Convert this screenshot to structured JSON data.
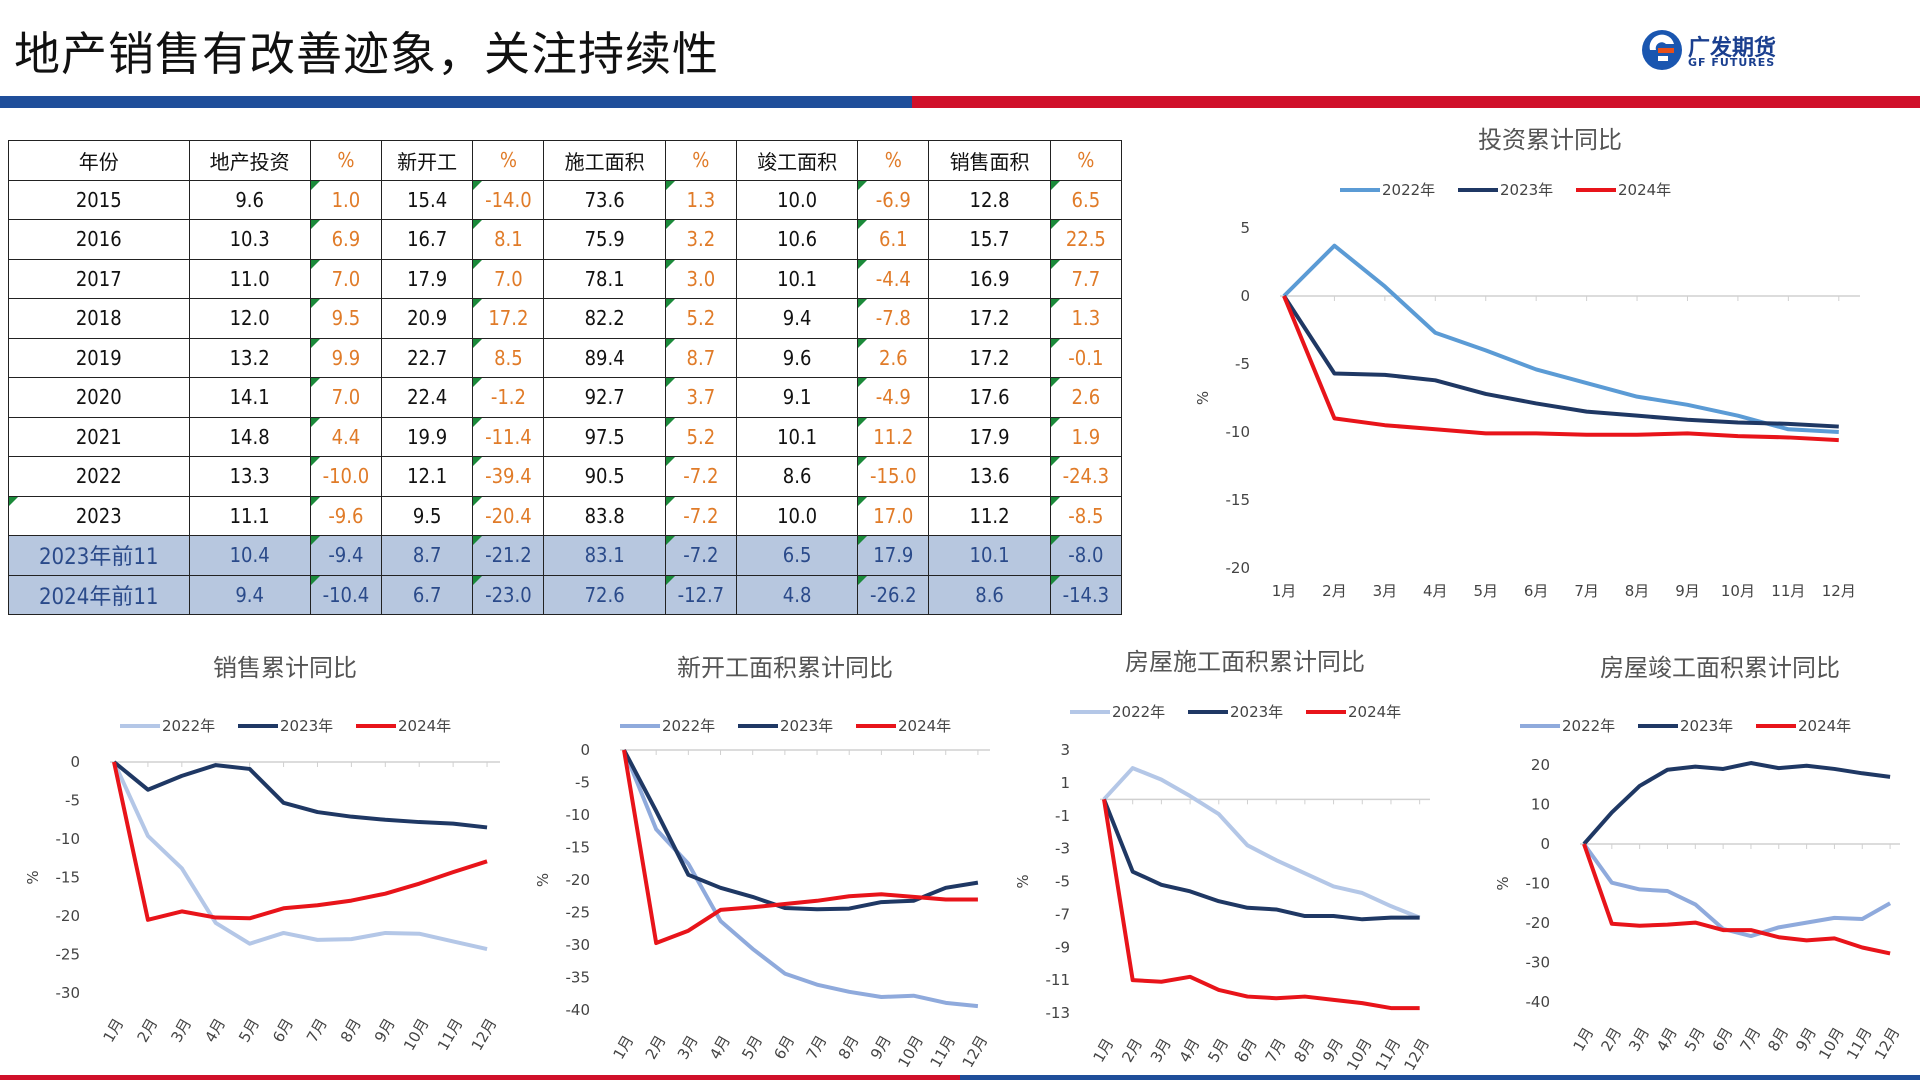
{
  "header": {
    "title": "地产销售有改善迹象，关注持续性",
    "logo_cn": "广发期货",
    "logo_en": "GF FUTURES"
  },
  "colors": {
    "brand_blue": "#1f4e9a",
    "brand_red": "#d0102a",
    "pct_orange": "#e07b28",
    "highlight_row": "#b7c7df"
  },
  "table": {
    "headers": [
      "年份",
      "地产投资",
      "%",
      "新开工",
      "%",
      "施工面积",
      "%",
      "竣工面积",
      "%",
      "销售面积",
      "%"
    ],
    "rows": [
      [
        "2015",
        "9.6",
        "1.0",
        "15.4",
        "-14.0",
        "73.6",
        "1.3",
        "10.0",
        "-6.9",
        "12.8",
        "6.5"
      ],
      [
        "2016",
        "10.3",
        "6.9",
        "16.7",
        "8.1",
        "75.9",
        "3.2",
        "10.6",
        "6.1",
        "15.7",
        "22.5"
      ],
      [
        "2017",
        "11.0",
        "7.0",
        "17.9",
        "7.0",
        "78.1",
        "3.0",
        "10.1",
        "-4.4",
        "16.9",
        "7.7"
      ],
      [
        "2018",
        "12.0",
        "9.5",
        "20.9",
        "17.2",
        "82.2",
        "5.2",
        "9.4",
        "-7.8",
        "17.2",
        "1.3"
      ],
      [
        "2019",
        "13.2",
        "9.9",
        "22.7",
        "8.5",
        "89.4",
        "8.7",
        "9.6",
        "2.6",
        "17.2",
        "-0.1"
      ],
      [
        "2020",
        "14.1",
        "7.0",
        "22.4",
        "-1.2",
        "92.7",
        "3.7",
        "9.1",
        "-4.9",
        "17.6",
        "2.6"
      ],
      [
        "2021",
        "14.8",
        "4.4",
        "19.9",
        "-11.4",
        "97.5",
        "5.2",
        "10.1",
        "11.2",
        "17.9",
        "1.9"
      ],
      [
        "2022",
        "13.3",
        "-10.0",
        "12.1",
        "-39.4",
        "90.5",
        "-7.2",
        "8.6",
        "-15.0",
        "13.6",
        "-24.3"
      ],
      [
        "2023",
        "11.1",
        "-9.6",
        "9.5",
        "-20.4",
        "83.8",
        "-7.2",
        "10.0",
        "17.0",
        "11.2",
        "-8.5"
      ],
      [
        "2023年前11",
        "10.4",
        "-9.4",
        "8.7",
        "-21.2",
        "83.1",
        "-7.2",
        "6.5",
        "17.9",
        "10.1",
        "-8.0"
      ],
      [
        "2024年前11",
        "9.4",
        "-10.4",
        "6.7",
        "-23.0",
        "72.6",
        "-12.7",
        "4.8",
        "-26.2",
        "8.6",
        "-14.3"
      ]
    ]
  },
  "chart_data": [
    {
      "id": "invest",
      "type": "line",
      "title": "投资累计同比",
      "ylabel": "%",
      "x": [
        "1月",
        "2月",
        "3月",
        "4月",
        "5月",
        "6月",
        "7月",
        "8月",
        "9月",
        "10月",
        "11月",
        "12月"
      ],
      "ylim": [
        -20,
        5
      ],
      "yticks": [
        5,
        0,
        -5,
        -10,
        -15,
        -20
      ],
      "series": [
        {
          "name": "2022年",
          "color": "#5b9bd5",
          "values": [
            0,
            3.7,
            0.7,
            -2.7,
            -4.0,
            -5.4,
            -6.4,
            -7.4,
            -8.0,
            -8.8,
            -9.8,
            -10.0
          ]
        },
        {
          "name": "2023年",
          "color": "#1f3864",
          "values": [
            0,
            -5.7,
            -5.8,
            -6.2,
            -7.2,
            -7.9,
            -8.5,
            -8.8,
            -9.1,
            -9.3,
            -9.4,
            -9.6
          ]
        },
        {
          "name": "2024年",
          "color": "#e8141a",
          "values": [
            0,
            -9.0,
            -9.5,
            -9.8,
            -10.1,
            -10.1,
            -10.2,
            -10.2,
            -10.1,
            -10.3,
            -10.4,
            -10.6
          ]
        }
      ]
    },
    {
      "id": "sales",
      "type": "line",
      "title": "销售累计同比",
      "ylabel": "%",
      "x": [
        "1月",
        "2月",
        "3月",
        "4月",
        "5月",
        "6月",
        "7月",
        "8月",
        "9月",
        "10月",
        "11月",
        "12月"
      ],
      "ylim": [
        -30,
        0
      ],
      "yticks": [
        0,
        -5,
        -10,
        -15,
        -20,
        -25,
        -30
      ],
      "series": [
        {
          "name": "2022年",
          "color": "#b4c7e7",
          "values": [
            0,
            -9.6,
            -13.8,
            -20.9,
            -23.6,
            -22.2,
            -23.1,
            -23.0,
            -22.2,
            -22.3,
            -23.3,
            -24.3
          ]
        },
        {
          "name": "2023年",
          "color": "#1f3864",
          "values": [
            0,
            -3.6,
            -1.8,
            -0.4,
            -0.9,
            -5.3,
            -6.5,
            -7.1,
            -7.5,
            -7.8,
            -8.0,
            -8.5
          ]
        },
        {
          "name": "2024年",
          "color": "#e8141a",
          "values": [
            0,
            -20.5,
            -19.4,
            -20.2,
            -20.3,
            -19.0,
            -18.6,
            -18.0,
            -17.1,
            -15.8,
            -14.3,
            -12.9
          ]
        }
      ]
    },
    {
      "id": "newstart",
      "type": "line",
      "title": "新开工面积累计同比",
      "ylabel": "%",
      "x": [
        "1月",
        "2月",
        "3月",
        "4月",
        "5月",
        "6月",
        "7月",
        "8月",
        "9月",
        "10月",
        "11月",
        "12月"
      ],
      "ylim": [
        -40,
        0
      ],
      "yticks": [
        0,
        -5,
        -10,
        -15,
        -20,
        -25,
        -30,
        -35,
        -40
      ],
      "series": [
        {
          "name": "2022年",
          "color": "#8faadc",
          "values": [
            0,
            -12.2,
            -17.5,
            -26.3,
            -30.6,
            -34.4,
            -36.1,
            -37.2,
            -38.0,
            -37.8,
            -38.9,
            -39.4
          ]
        },
        {
          "name": "2023年",
          "color": "#1f3864",
          "values": [
            0,
            -9.4,
            -19.2,
            -21.2,
            -22.6,
            -24.3,
            -24.5,
            -24.4,
            -23.4,
            -23.2,
            -21.2,
            -20.4
          ]
        },
        {
          "name": "2024年",
          "color": "#e8141a",
          "values": [
            0,
            -29.7,
            -27.8,
            -24.6,
            -24.2,
            -23.7,
            -23.2,
            -22.5,
            -22.2,
            -22.6,
            -23.0,
            -23.0
          ]
        }
      ]
    },
    {
      "id": "construction",
      "type": "line",
      "title": "房屋施工面积累计同比",
      "ylabel": "%",
      "x": [
        "1月",
        "2月",
        "3月",
        "4月",
        "5月",
        "6月",
        "7月",
        "8月",
        "9月",
        "10月",
        "11月",
        "12月"
      ],
      "ylim": [
        -13,
        3
      ],
      "yticks": [
        3,
        1,
        -1,
        -3,
        -5,
        -7,
        -9,
        -11,
        -13
      ],
      "series": [
        {
          "name": "2022年",
          "color": "#b4c7e7",
          "values": [
            0,
            1.9,
            1.2,
            0.2,
            -0.9,
            -2.8,
            -3.7,
            -4.5,
            -5.3,
            -5.7,
            -6.5,
            -7.2
          ]
        },
        {
          "name": "2023年",
          "color": "#1f3864",
          "values": [
            0,
            -4.4,
            -5.2,
            -5.6,
            -6.2,
            -6.6,
            -6.7,
            -7.1,
            -7.1,
            -7.3,
            -7.2,
            -7.2
          ]
        },
        {
          "name": "2024年",
          "color": "#e8141a",
          "values": [
            0,
            -11.0,
            -11.1,
            -10.8,
            -11.6,
            -12.0,
            -12.1,
            -12.0,
            -12.2,
            -12.4,
            -12.7,
            -12.7
          ]
        }
      ]
    },
    {
      "id": "completion",
      "type": "line",
      "title": "房屋竣工面积累计同比",
      "ylabel": "%",
      "x": [
        "1月",
        "2月",
        "3月",
        "4月",
        "5月",
        "6月",
        "7月",
        "8月",
        "9月",
        "10月",
        "11月",
        "12月"
      ],
      "ylim": [
        -40,
        20
      ],
      "yticks": [
        20,
        10,
        0,
        -10,
        -20,
        -30,
        -40
      ],
      "series": [
        {
          "name": "2022年",
          "color": "#8faadc",
          "values": [
            0,
            -9.8,
            -11.5,
            -11.9,
            -15.3,
            -21.5,
            -23.3,
            -21.1,
            -19.9,
            -18.7,
            -19.0,
            -15.0
          ]
        },
        {
          "name": "2023年",
          "color": "#1f3864",
          "values": [
            0,
            8.0,
            14.7,
            18.8,
            19.6,
            19.0,
            20.5,
            19.2,
            19.8,
            19.0,
            17.9,
            17.0
          ]
        },
        {
          "name": "2024年",
          "color": "#e8141a",
          "values": [
            0,
            -20.2,
            -20.7,
            -20.4,
            -19.9,
            -21.8,
            -21.8,
            -23.6,
            -24.4,
            -23.9,
            -26.2,
            -27.7
          ]
        }
      ]
    }
  ]
}
